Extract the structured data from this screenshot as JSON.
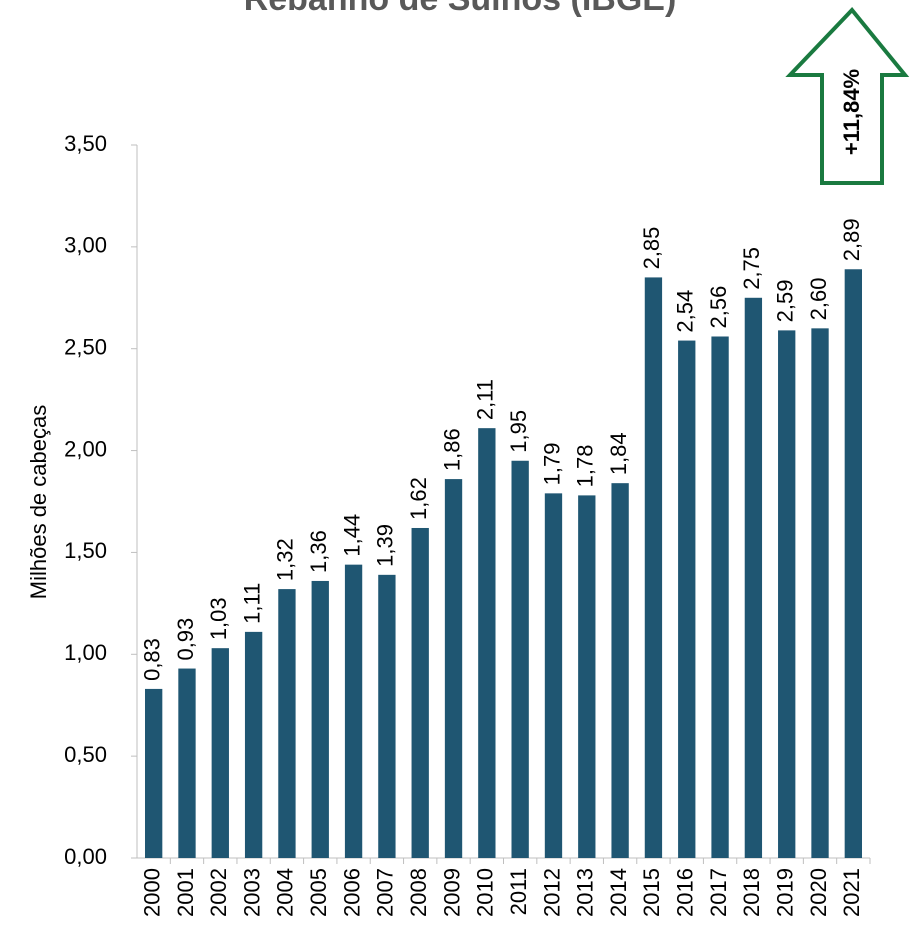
{
  "chart_data": {
    "type": "bar",
    "title": "Rebanho de Suínos (IBGE)",
    "y_label": "Milhões de cabeças",
    "annotation": "+11,84%",
    "color": "#1f5672",
    "categories": [
      "2000",
      "2001",
      "2002",
      "2003",
      "2004",
      "2005",
      "2006",
      "2007",
      "2008",
      "2009",
      "2010",
      "2011",
      "2012",
      "2013",
      "2014",
      "2015",
      "2016",
      "2017",
      "2018",
      "2019",
      "2020",
      "2021"
    ],
    "values": [
      0.83,
      0.93,
      1.03,
      1.11,
      1.32,
      1.36,
      1.44,
      1.39,
      1.62,
      1.86,
      2.11,
      1.95,
      1.79,
      1.78,
      1.84,
      2.85,
      2.54,
      2.56,
      2.75,
      2.59,
      2.6,
      2.89
    ],
    "value_labels": [
      "0,83",
      "0,93",
      "1,03",
      "1,11",
      "1,32",
      "1,36",
      "1,44",
      "1,39",
      "1,62",
      "1,86",
      "2,11",
      "1,95",
      "1,79",
      "1,78",
      "1,84",
      "2,85",
      "2,54",
      "2,56",
      "2,75",
      "2,59",
      "2,60",
      "2,89"
    ],
    "ylim": [
      0,
      3.5
    ],
    "yticks": [
      {
        "value": 0,
        "label": "0,00"
      },
      {
        "value": 0.5,
        "label": "0,50"
      },
      {
        "value": 1,
        "label": "1,00"
      },
      {
        "value": 1.5,
        "label": "1,50"
      },
      {
        "value": 2,
        "label": "2,00"
      },
      {
        "value": 2.5,
        "label": "2,50"
      },
      {
        "value": 3,
        "label": "3,00"
      },
      {
        "value": 3.5,
        "label": "3,50"
      }
    ],
    "grid": false
  }
}
